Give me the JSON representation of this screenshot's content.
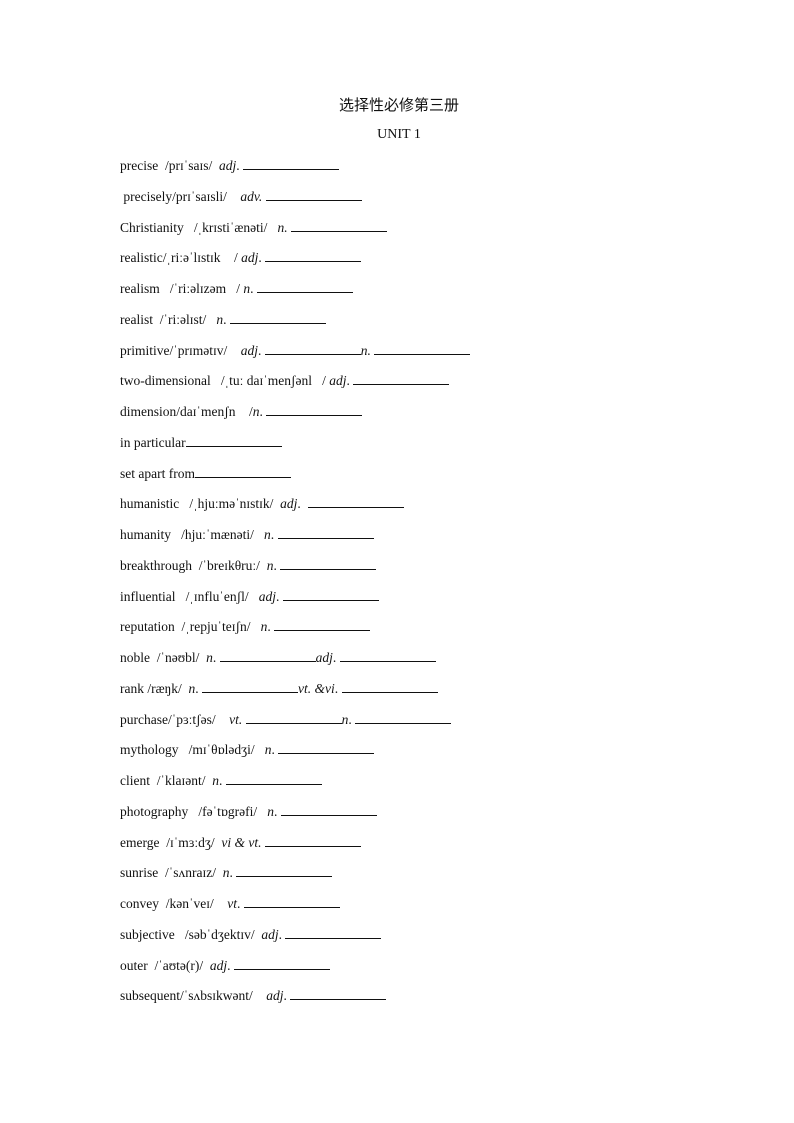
{
  "title": "选择性必修第三册",
  "unit": "UNIT 1",
  "lines": [
    [
      {
        "t": "precise  /prɪˈsaɪs/  "
      },
      {
        "i": "adj"
      },
      {
        "t": ". "
      },
      {
        "b": 1
      }
    ],
    [
      {
        "t": " precisely/prɪˈsaɪsli/    "
      },
      {
        "i": "adv."
      },
      {
        "t": " "
      },
      {
        "b": 1
      }
    ],
    [
      {
        "t": "Christianity   /ˌkrɪstiˈænəti/   "
      },
      {
        "i": "n."
      },
      {
        "t": " "
      },
      {
        "b": 1
      }
    ],
    [
      {
        "t": "realistic/ˌriːəˈlɪstɪk    / "
      },
      {
        "i": "adj"
      },
      {
        "t": ". "
      },
      {
        "b": 1
      }
    ],
    [
      {
        "t": "realism   /ˈriːəlɪzəm   / "
      },
      {
        "i": "n"
      },
      {
        "t": ". "
      },
      {
        "b": 1
      }
    ],
    [
      {
        "t": "realist  /ˈriːəlɪst/   "
      },
      {
        "i": "n"
      },
      {
        "t": ". "
      },
      {
        "b": 1
      }
    ],
    [
      {
        "t": "primitive/ˈprɪmətɪv/    "
      },
      {
        "i": "adj"
      },
      {
        "t": ". "
      },
      {
        "b": 1
      },
      {
        "i": "n."
      },
      {
        "t": " "
      },
      {
        "b": 1
      }
    ],
    [
      {
        "t": "two-dimensional   /ˌtuː daɪˈmenʃənl   / "
      },
      {
        "i": "adj"
      },
      {
        "t": ". "
      },
      {
        "b": 1
      }
    ],
    [
      {
        "t": "dimension/daɪˈmenʃn    /"
      },
      {
        "i": "n"
      },
      {
        "t": ". "
      },
      {
        "b": 1
      }
    ],
    [
      {
        "t": "in particular"
      },
      {
        "b": 1
      }
    ],
    [
      {
        "t": "set apart from"
      },
      {
        "b": 1
      }
    ],
    [
      {
        "t": "humanistic   /ˌhjuːməˈnɪstɪk/  "
      },
      {
        "i": "adj"
      },
      {
        "t": ".  "
      },
      {
        "b": 1
      }
    ],
    [
      {
        "t": "humanity   /hjuːˈmænəti/   "
      },
      {
        "i": "n"
      },
      {
        "t": ". "
      },
      {
        "b": 1
      }
    ],
    [
      {
        "t": "breakthrough  /ˈbreɪkθruː/  "
      },
      {
        "i": "n"
      },
      {
        "t": ". "
      },
      {
        "b": 1
      }
    ],
    [
      {
        "t": "influential   /ˌɪnfluˈenʃl/   "
      },
      {
        "i": "adj"
      },
      {
        "t": ". "
      },
      {
        "b": 1
      }
    ],
    [
      {
        "t": "reputation  /ˌrepjuˈteɪʃn/   "
      },
      {
        "i": "n"
      },
      {
        "t": ". "
      },
      {
        "b": 1
      }
    ],
    [
      {
        "t": "noble  /ˈnəʊbl/  "
      },
      {
        "i": "n"
      },
      {
        "t": ". "
      },
      {
        "b": 1
      },
      {
        "i": "adj"
      },
      {
        "t": ". "
      },
      {
        "b": 1
      }
    ],
    [
      {
        "t": "rank /ræŋk/  "
      },
      {
        "i": "n"
      },
      {
        "t": ". "
      },
      {
        "b": 1
      },
      {
        "i": "vt. &vi"
      },
      {
        "t": ". "
      },
      {
        "b": 1
      }
    ],
    [
      {
        "t": "purchase/ˈpɜːtʃəs/    "
      },
      {
        "i": "vt."
      },
      {
        "t": " "
      },
      {
        "b": 1
      },
      {
        "i": "n"
      },
      {
        "t": ". "
      },
      {
        "b": 1
      }
    ],
    [
      {
        "t": "mythology   /mɪˈθɒlədʒi/   "
      },
      {
        "i": "n"
      },
      {
        "t": ". "
      },
      {
        "b": 1
      }
    ],
    [
      {
        "t": "client  /ˈklaɪənt/  "
      },
      {
        "i": "n"
      },
      {
        "t": ". "
      },
      {
        "b": 1
      }
    ],
    [
      {
        "t": "photography   /fəˈtɒgrəfi/   "
      },
      {
        "i": "n"
      },
      {
        "t": ". "
      },
      {
        "b": 1
      }
    ],
    [
      {
        "t": "emerge  /ɪˈmɜːdʒ/  "
      },
      {
        "i": "vi & vt."
      },
      {
        "t": " "
      },
      {
        "b": 1
      }
    ],
    [
      {
        "t": "sunrise  /ˈsʌnraɪz/  "
      },
      {
        "i": "n"
      },
      {
        "t": ". "
      },
      {
        "b": 1
      }
    ],
    [
      {
        "t": "convey  /kənˈveɪ/    "
      },
      {
        "i": "vt"
      },
      {
        "t": ". "
      },
      {
        "b": 1
      }
    ],
    [
      {
        "t": "subjective   /səbˈdʒektɪv/  "
      },
      {
        "i": "adj"
      },
      {
        "t": ". "
      },
      {
        "b": 1
      }
    ],
    [
      {
        "t": "outer  /ˈaʊtə(r)/  "
      },
      {
        "i": "adj"
      },
      {
        "t": ". "
      },
      {
        "b": 1
      }
    ],
    [
      {
        "t": "subsequent/ˈsʌbsɪkwənt/    "
      },
      {
        "i": "adj"
      },
      {
        "t": ". "
      },
      {
        "b": 1
      }
    ]
  ]
}
